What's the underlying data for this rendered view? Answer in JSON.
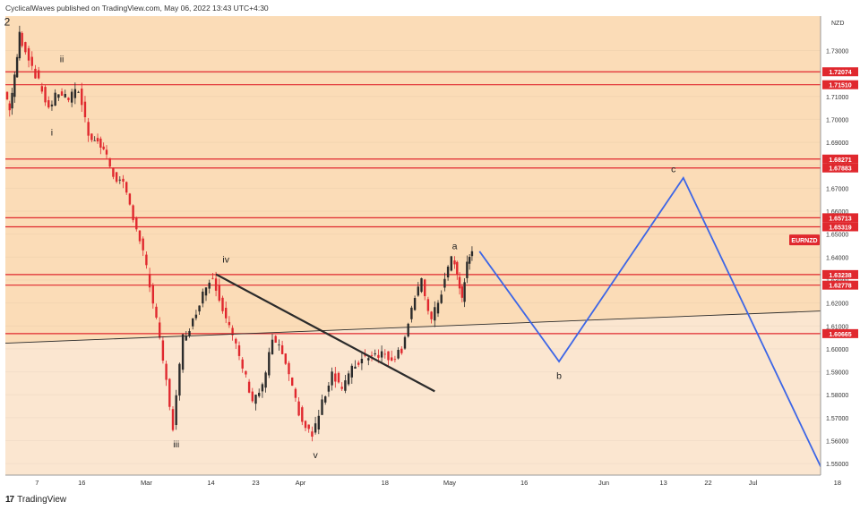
{
  "header": {
    "published_text": "CyclicalWaves published on TradingView.com, May 06, 2022 13:43 UTC+4:30"
  },
  "footer": {
    "brand": "TradingView",
    "logo_glyph": "17"
  },
  "colors": {
    "upper_bg": "#fbdcb7",
    "lower_bg": "#fbe6d0",
    "hline": "#e0282e",
    "projection": "#3d66e6",
    "trendline": "#2b2b2b",
    "up_candle": "#2b2b2b",
    "down_candle": "#e0282e",
    "symbol_badge": "#e0282e"
  },
  "chart_data": {
    "type": "line",
    "symbol": "EURNZD",
    "currency_label": "NZD",
    "y_range": [
      1.545,
      1.745
    ],
    "x_ticks": [
      "7",
      "16",
      "Mar",
      "14",
      "23",
      "Apr",
      "18",
      "May",
      "16",
      "Jun",
      "13",
      "22",
      "Jul",
      "18"
    ],
    "y_ticks": [
      "1.73000",
      "1.72000",
      "1.71000",
      "1.70000",
      "1.69000",
      "1.68000",
      "1.67000",
      "1.66000",
      "1.65000",
      "1.64000",
      "1.63000",
      "1.62000",
      "1.61000",
      "1.60000",
      "1.59000",
      "1.58000",
      "1.57000",
      "1.56000",
      "1.55000"
    ],
    "horizontal_levels": [
      "1.72074",
      "1.71510",
      "1.68271",
      "1.67883",
      "1.65713",
      "1.65319",
      "1.63238",
      "1.62778",
      "1.60665"
    ],
    "price_path": [
      [
        "Feb 1",
        1.712
      ],
      [
        "Feb 2",
        1.705
      ],
      [
        "Feb 3",
        1.718
      ],
      [
        "Feb 4",
        1.737
      ],
      [
        "Feb 6",
        1.727
      ],
      [
        "Feb 8",
        1.716
      ],
      [
        "Feb 10",
        1.705
      ],
      [
        "Feb 12",
        1.712
      ],
      [
        "Feb 14",
        1.709
      ],
      [
        "Feb 16",
        1.713
      ],
      [
        "Feb 18",
        1.694
      ],
      [
        "Feb 21",
        1.687
      ],
      [
        "Feb 23",
        1.676
      ],
      [
        "Feb 25",
        1.671
      ],
      [
        "Feb 27",
        1.658
      ],
      [
        "Mar 1",
        1.642
      ],
      [
        "Mar 3",
        1.62
      ],
      [
        "Mar 5",
        1.595
      ],
      [
        "Mar 7",
        1.566
      ],
      [
        "Mar 9",
        1.605
      ],
      [
        "Mar 11",
        1.612
      ],
      [
        "Mar 13",
        1.625
      ],
      [
        "Mar 15",
        1.632
      ],
      [
        "Mar 17",
        1.618
      ],
      [
        "Mar 19",
        1.605
      ],
      [
        "Mar 21",
        1.592
      ],
      [
        "Mar 23",
        1.578
      ],
      [
        "Mar 25",
        1.583
      ],
      [
        "Mar 27",
        1.604
      ],
      [
        "Mar 29",
        1.598
      ],
      [
        "Mar 31",
        1.582
      ],
      [
        "Apr 2",
        1.568
      ],
      [
        "Apr 4",
        1.562
      ],
      [
        "Apr 6",
        1.576
      ],
      [
        "Apr 8",
        1.59
      ],
      [
        "Apr 10",
        1.583
      ],
      [
        "Apr 12",
        1.591
      ],
      [
        "Apr 14",
        1.596
      ],
      [
        "Apr 16",
        1.598
      ],
      [
        "Apr 18",
        1.598
      ],
      [
        "Apr 20",
        1.596
      ],
      [
        "Apr 22",
        1.6
      ],
      [
        "Apr 24",
        1.618
      ],
      [
        "Apr 26",
        1.629
      ],
      [
        "Apr 28",
        1.612
      ],
      [
        "Apr 30",
        1.625
      ],
      [
        "May 2",
        1.64
      ],
      [
        "May 3",
        1.632
      ],
      [
        "May 4",
        1.622
      ],
      [
        "May 5",
        1.637
      ],
      [
        "May 6",
        1.643
      ]
    ],
    "projection_path": [
      [
        "May 7",
        1.6425
      ],
      [
        "May 23",
        1.5945
      ],
      [
        "Jun 17",
        1.6745
      ],
      [
        "Jul 15",
        1.547
      ]
    ],
    "trendline": [
      [
        "Mar 15",
        1.6325
      ],
      [
        "Apr 28",
        1.5815
      ]
    ],
    "wave_labels": [
      {
        "text": "2",
        "date": "Feb 1",
        "price": 1.741
      },
      {
        "text": "ii",
        "date": "Feb 12",
        "price": 1.725
      },
      {
        "text": "i",
        "date": "Feb 10",
        "price": 1.693
      },
      {
        "text": "iii",
        "date": "Mar 7",
        "price": 1.557
      },
      {
        "text": "iv",
        "date": "Mar 17",
        "price": 1.6375
      },
      {
        "text": "v",
        "date": "Apr 4",
        "price": 1.5525
      },
      {
        "text": "a",
        "date": "May 2",
        "price": 1.6435
      },
      {
        "text": "b",
        "date": "May 23",
        "price": 1.587
      },
      {
        "text": "c",
        "date": "Jun 15",
        "price": 1.677
      }
    ]
  }
}
